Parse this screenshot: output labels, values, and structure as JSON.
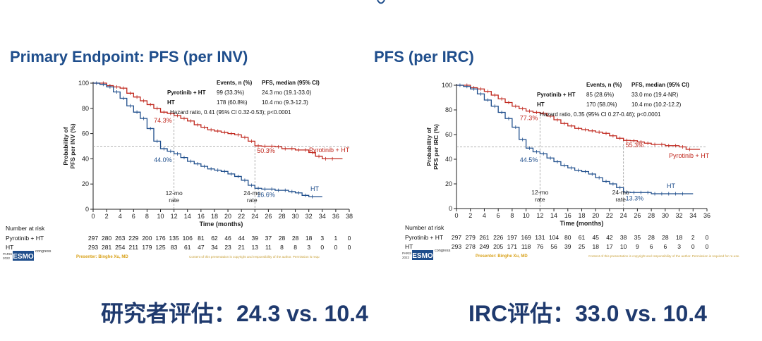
{
  "headings": {
    "left": "Primary Endpoint: PFS (per INV)",
    "right": "PFS (per IRC)"
  },
  "captions": {
    "left": "研究者评估：24.3 vs. 10.4",
    "right": "IRC评估：33.0 vs. 10.4"
  },
  "colors": {
    "pyrotinib": "#c0281e",
    "ht": "#1f4e8c",
    "heading": "#1f4e8c",
    "caption": "#1f3a6e",
    "presenter": "#d9a21b"
  },
  "chart_data": [
    {
      "id": "inv",
      "type": "line",
      "ylabel": "Probability of PFS per INV (%)",
      "ylabel_lines": [
        "Probability of",
        "PFS per INV (%)"
      ],
      "xlabel": "Time (months)",
      "xlim": [
        0,
        38
      ],
      "ylim": [
        0,
        100
      ],
      "xticks": [
        0,
        2,
        4,
        6,
        8,
        10,
        12,
        14,
        16,
        18,
        20,
        22,
        24,
        26,
        28,
        30,
        32,
        34,
        36,
        38
      ],
      "yticks": [
        0,
        20,
        40,
        60,
        80,
        100
      ],
      "grid": false,
      "reference_lines": {
        "y": 50,
        "x": [
          12,
          24
        ]
      },
      "stats_header": {
        "events": "Events, n (%)",
        "pfs": "PFS, median (95% CI)"
      },
      "stats": [
        {
          "name": "Pyrotinib + HT",
          "events": "99 (33.3%)",
          "pfs": "24.3 mo (19.1-33.0)"
        },
        {
          "name": "HT",
          "events": "178 (60.8%)",
          "pfs": "10.4 mo (9.3-12.3)"
        }
      ],
      "hazard_ratio": "Hazard ratio, 0.41 (95% CI 0.32-0.53); p<0.0001",
      "series": [
        {
          "name": "Pyrotinib + HT",
          "color": "#c0281e",
          "x": [
            0,
            2,
            3,
            4,
            5,
            6,
            7,
            8,
            9,
            10,
            11,
            12,
            13,
            14,
            15,
            16,
            17,
            18,
            19,
            20,
            21,
            22,
            23,
            24,
            25,
            26,
            27,
            28,
            29,
            30,
            31,
            32,
            33,
            34,
            35,
            36
          ],
          "y": [
            100,
            98,
            97,
            96,
            92,
            89,
            86,
            83,
            80,
            77,
            76,
            74.3,
            72,
            70,
            67,
            65,
            63,
            62,
            61,
            60,
            59,
            57,
            54,
            50.3,
            50,
            50,
            49.5,
            48,
            48,
            47,
            47,
            45,
            42,
            40,
            40,
            40
          ]
        },
        {
          "name": "HT",
          "color": "#1f4e8c",
          "x": [
            0,
            1,
            2,
            3,
            4,
            5,
            6,
            7,
            8,
            9,
            10,
            11,
            12,
            13,
            14,
            15,
            16,
            17,
            18,
            19,
            20,
            21,
            22,
            23,
            24,
            25,
            26,
            27,
            28,
            29,
            30,
            31,
            32,
            33
          ],
          "y": [
            100,
            99,
            97,
            93,
            88,
            82,
            77,
            72,
            64,
            54,
            48,
            46,
            44,
            41,
            38,
            36,
            34,
            32,
            31,
            30,
            28,
            26,
            23,
            19,
            16.6,
            16,
            16,
            15,
            15,
            14,
            13,
            11,
            10,
            10
          ]
        }
      ],
      "annotations": [
        {
          "text": "74.3%",
          "series": "Pyrotinib + HT",
          "x": 12,
          "y": 74.3
        },
        {
          "text": "44.0%",
          "series": "HT",
          "x": 12,
          "y": 44
        },
        {
          "text": "50.3%",
          "series": "Pyrotinib + HT",
          "x": 24,
          "y": 50.3
        },
        {
          "text": "16.6%",
          "series": "HT",
          "x": 24,
          "y": 16.6
        }
      ],
      "landmarks": [
        {
          "line1": "12-mo",
          "line2": "rate"
        },
        {
          "line1": "24-mo",
          "line2": "rate"
        }
      ],
      "legend_labels": {
        "pyrotinib": "Pyrotinib + HT",
        "ht": "HT"
      },
      "risk_table": {
        "title": "Number at risk",
        "rows": [
          {
            "label": "Pyrotinib + HT",
            "values": [
              "297",
              "280",
              "263",
              "229",
              "200",
              "176",
              "135",
              "106",
              "81",
              "62",
              "46",
              "44",
              "39",
              "37",
              "28",
              "28",
              "18",
              "3",
              "1",
              "0"
            ]
          },
          {
            "label": "HT",
            "values": [
              "293",
              "281",
              "254",
              "211",
              "179",
              "125",
              "83",
              "61",
              "47",
              "34",
              "23",
              "21",
              "13",
              "11",
              "8",
              "8",
              "3",
              "0",
              "0",
              "0"
            ]
          }
        ]
      },
      "presenter": "Presenter: Binghe Xu, MD",
      "copyright": "Content of this presentation is copyright and responsibility of the author. Permission is requ",
      "logo": {
        "line1": "PARIS",
        "line2": "2022",
        "mark": "ESMO",
        "suffix": "congress"
      }
    },
    {
      "id": "irc",
      "type": "line",
      "ylabel": "Probability of PFS per IRC (%)",
      "ylabel_lines": [
        "Probability of",
        "PFS per IRC (%)"
      ],
      "xlabel": "Time (months)",
      "xlim": [
        0,
        36
      ],
      "ylim": [
        0,
        100
      ],
      "xticks": [
        0,
        2,
        4,
        6,
        8,
        10,
        12,
        14,
        16,
        18,
        20,
        22,
        24,
        26,
        28,
        30,
        32,
        34,
        36
      ],
      "yticks": [
        0,
        20,
        40,
        60,
        80,
        100
      ],
      "grid": false,
      "reference_lines": {
        "y": 50,
        "x": [
          12,
          24
        ]
      },
      "stats_header": {
        "events": "Events, n (%)",
        "pfs": "PFS, median (95% CI)"
      },
      "stats": [
        {
          "name": "Pyrotinib + HT",
          "events": "85 (28.6%)",
          "pfs": "33.0 mo (19.4-NR)"
        },
        {
          "name": "HT",
          "events": "170 (58.0%)",
          "pfs": "10.4 mo (10.2-12.2)"
        }
      ],
      "hazard_ratio": "Hazard ratio, 0.35 (95% CI 0.27-0.46); p<0.0001",
      "series": [
        {
          "name": "Pyrotinib + HT",
          "color": "#c0281e",
          "x": [
            0,
            2,
            3,
            4,
            5,
            6,
            7,
            8,
            9,
            10,
            11,
            12,
            13,
            14,
            15,
            16,
            17,
            18,
            19,
            20,
            21,
            22,
            23,
            24,
            25,
            26,
            27,
            28,
            29,
            30,
            31,
            32,
            33,
            34
          ],
          "y": [
            100,
            98,
            97,
            95,
            92,
            89,
            86,
            83,
            81,
            79,
            78,
            77.3,
            75,
            72,
            69,
            67,
            65,
            64,
            63,
            62,
            61,
            59,
            57,
            55.3,
            55,
            54,
            53,
            52,
            52,
            51,
            51,
            50,
            48,
            48
          ]
        },
        {
          "name": "HT",
          "color": "#1f4e8c",
          "x": [
            0,
            1,
            2,
            3,
            4,
            5,
            6,
            7,
            8,
            9,
            10,
            11,
            12,
            13,
            14,
            15,
            16,
            17,
            18,
            19,
            20,
            21,
            22,
            23,
            24,
            25,
            26,
            27,
            28,
            29,
            30,
            31,
            32,
            33
          ],
          "y": [
            100,
            99,
            97,
            93,
            88,
            83,
            78,
            73,
            66,
            56,
            49,
            46,
            44.5,
            41,
            38,
            35,
            33,
            31,
            30,
            28,
            25,
            22,
            20,
            17,
            13.3,
            13,
            13,
            13,
            12,
            12,
            12,
            12,
            12,
            12
          ]
        }
      ],
      "annotations": [
        {
          "text": "77.3%",
          "series": "Pyrotinib + HT",
          "x": 12,
          "y": 77.3
        },
        {
          "text": "44.5%",
          "series": "HT",
          "x": 12,
          "y": 44.5
        },
        {
          "text": "55.3%",
          "series": "Pyrotinib + HT",
          "x": 24,
          "y": 55.3
        },
        {
          "text": "13.3%",
          "series": "HT",
          "x": 24,
          "y": 13.3
        }
      ],
      "landmarks": [
        {
          "line1": "12-mo",
          "line2": "rate"
        },
        {
          "line1": "24-mo",
          "line2": "rate"
        }
      ],
      "legend_labels": {
        "pyrotinib": "Pyrotinib + HT",
        "ht": "HT"
      },
      "risk_table": {
        "title": "Number at risk",
        "rows": [
          {
            "label": "Pyrotinib + HT",
            "values": [
              "297",
              "279",
              "261",
              "226",
              "197",
              "169",
              "131",
              "104",
              "80",
              "61",
              "45",
              "42",
              "38",
              "35",
              "28",
              "28",
              "18",
              "2",
              "0"
            ]
          },
          {
            "label": "HT",
            "values": [
              "293",
              "278",
              "249",
              "205",
              "171",
              "118",
              "76",
              "56",
              "39",
              "25",
              "18",
              "17",
              "10",
              "9",
              "6",
              "6",
              "3",
              "0",
              "0"
            ]
          }
        ]
      },
      "presenter": "Presenter: Binghe Xu, MD",
      "copyright": "Content of this presentation is copyright and responsibility of the author. Permission is required for re-use.",
      "logo": {
        "line1": "PARIS",
        "line2": "2022",
        "mark": "ESMO",
        "suffix": "congress"
      }
    }
  ]
}
